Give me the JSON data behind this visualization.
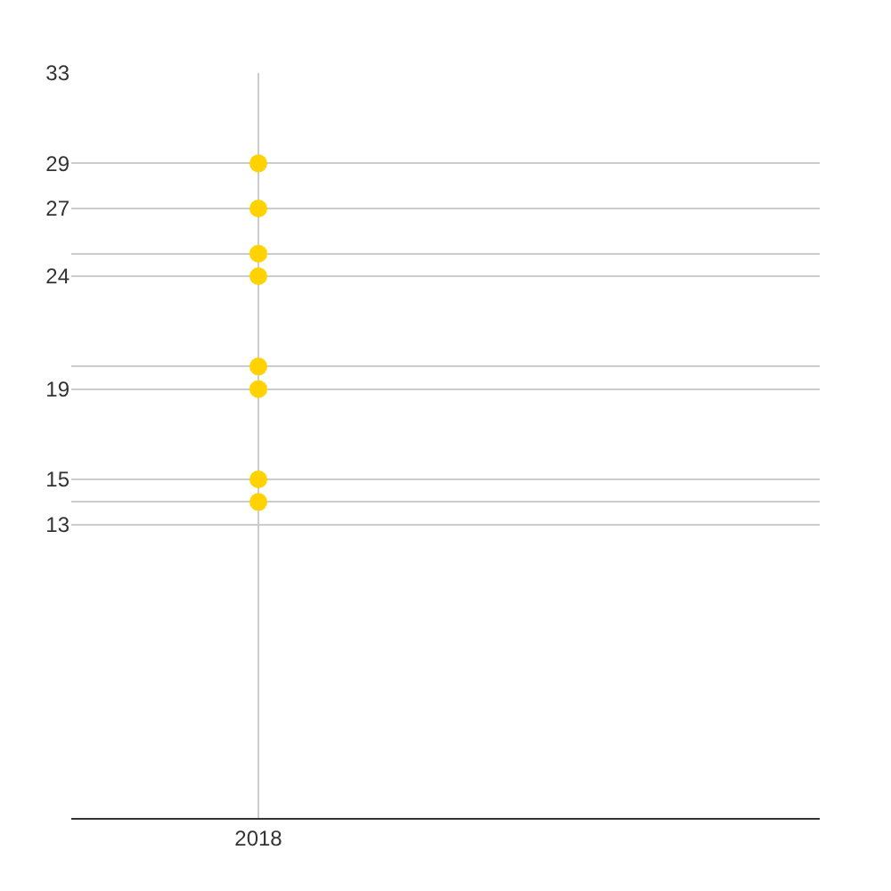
{
  "chart_data": {
    "type": "scatter",
    "categories": [
      "2018"
    ],
    "series": [
      {
        "color": "#ffd200",
        "values": [
          29
        ]
      },
      {
        "color": "#ffd200",
        "values": [
          27
        ]
      },
      {
        "color": "#ffd200",
        "values": [
          25
        ]
      },
      {
        "color": "#ffd200",
        "values": [
          24
        ]
      },
      {
        "color": "#ffd200",
        "values": [
          20
        ]
      },
      {
        "color": "#ffd200",
        "values": [
          19
        ]
      },
      {
        "color": "#ffd200",
        "values": [
          15
        ]
      },
      {
        "color": "#ffd200",
        "values": [
          14
        ]
      }
    ],
    "ylim": [
      0,
      33
    ],
    "yticks": [
      13,
      {
        "value": 14,
        "label": null
      },
      15,
      19,
      {
        "value": 20,
        "label": null
      },
      24,
      {
        "value": 25,
        "label": null
      },
      27,
      29,
      33
    ],
    "grid": true,
    "marker": "circle"
  }
}
